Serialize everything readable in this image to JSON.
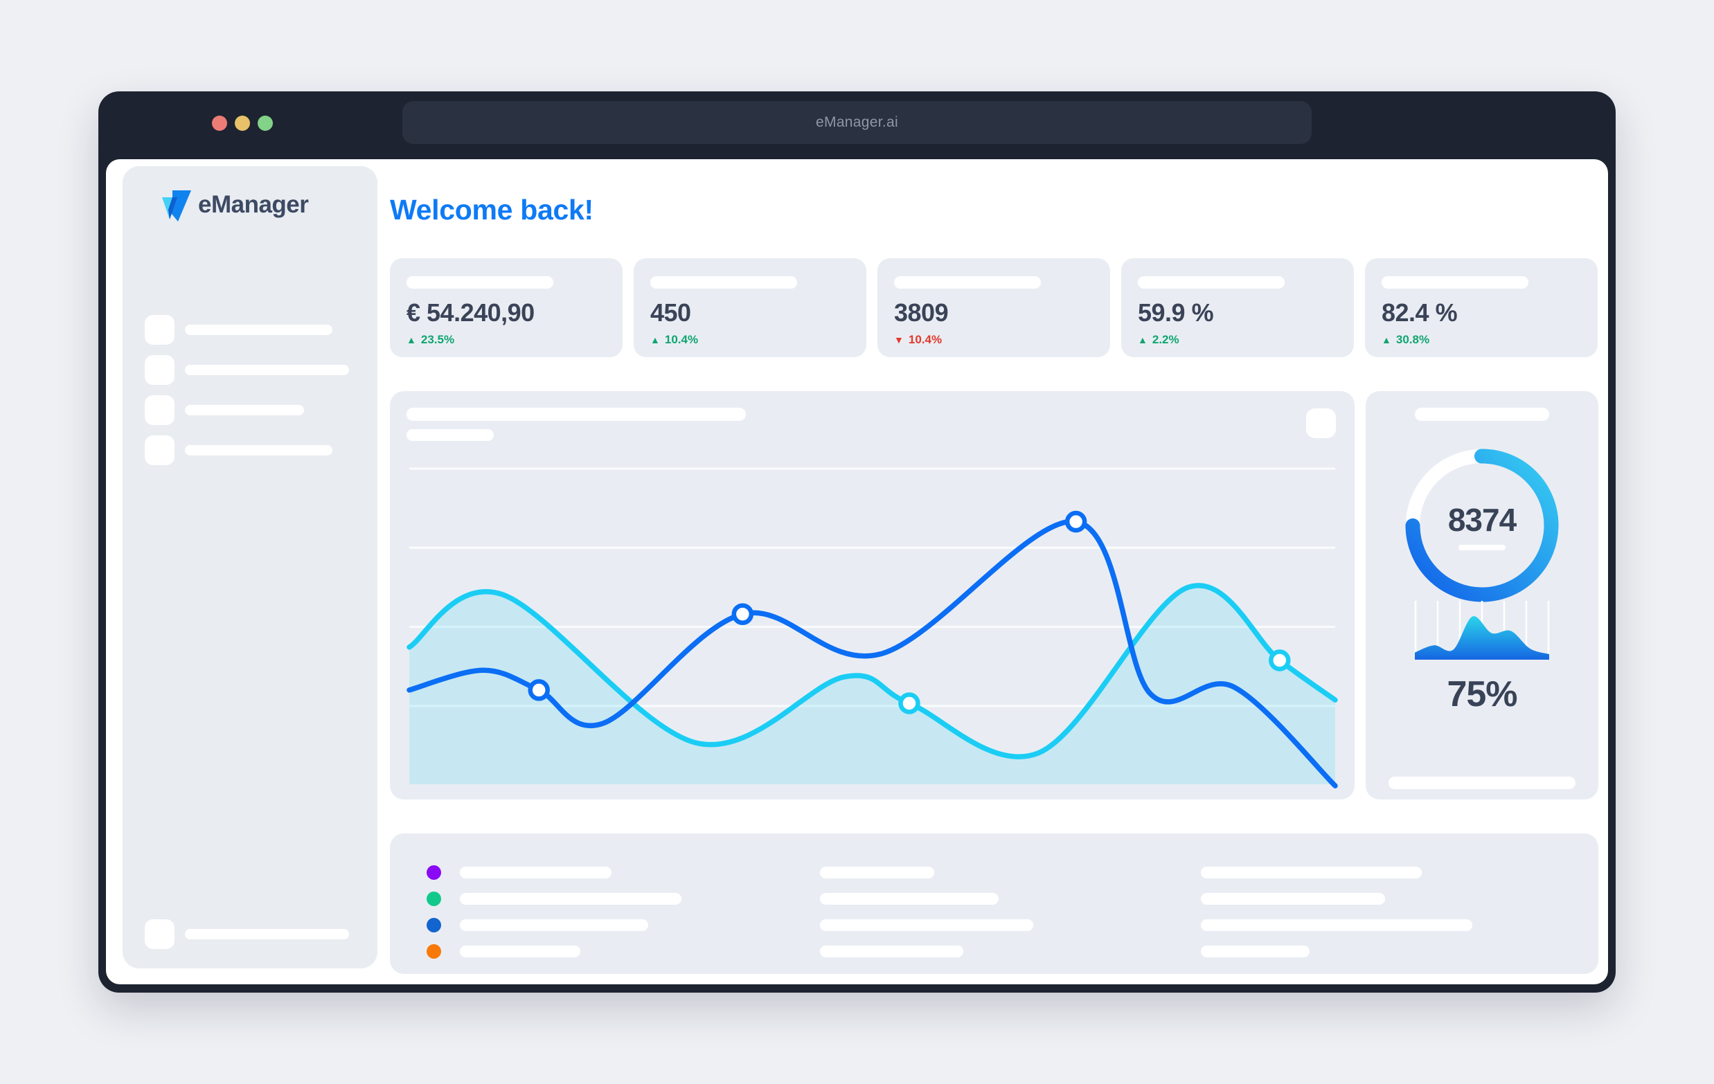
{
  "window": {
    "url": "eManager.ai",
    "traffic_lights": [
      "close",
      "minimize",
      "zoom"
    ]
  },
  "sidebar": {
    "brand": "eManager",
    "nav_placeholder_widths": [
      213,
      237,
      172,
      213
    ],
    "footer_placeholder_width": 237
  },
  "main": {
    "welcome": "Welcome back!"
  },
  "stats": [
    {
      "value": "€ 54.240,90",
      "arrow": "▲",
      "change": "23.5%",
      "trend": "up"
    },
    {
      "value": "450",
      "arrow": "▲",
      "change": "10.4%",
      "trend": "up"
    },
    {
      "value": "3809",
      "arrow": "▼",
      "change": "10.4%",
      "trend": "down"
    },
    {
      "value": "59.9 %",
      "arrow": "▲",
      "change": "2.2%",
      "trend": "up"
    },
    {
      "value": "82.4 %",
      "arrow": "▲",
      "change": "30.8%",
      "trend": "up"
    }
  ],
  "right_panel": {
    "donut_value": "8374",
    "gauge_percent": "75%"
  },
  "chart_data": [
    {
      "type": "line",
      "title": "",
      "xlabel": "",
      "ylabel": "",
      "ylim": [
        0,
        100
      ],
      "grid": {
        "horizontal_lines": 4,
        "color": "#ffffff"
      },
      "legend_position": "none",
      "series": [
        {
          "name": "secondary-cyan",
          "color": "#1bcdf4",
          "style": "line-with-area",
          "x_pct": [
            0,
            10,
            31,
            47,
            54,
            68,
            84,
            94,
            100
          ],
          "values": [
            43,
            59,
            14,
            34,
            26,
            11,
            61,
            39,
            27
          ],
          "marker_indexes": [
            4,
            7
          ]
        },
        {
          "name": "primary-blue",
          "color": "#0b6ef4",
          "style": "line",
          "x_pct": [
            0,
            8,
            14,
            21,
            36,
            51,
            72,
            80,
            89,
            100
          ],
          "values": [
            30,
            36,
            30,
            20,
            53,
            41,
            81,
            29,
            31,
            1
          ],
          "marker_indexes": [
            2,
            4,
            6
          ]
        }
      ]
    },
    {
      "type": "donut",
      "percent": 75,
      "center_label": "8374",
      "track_color": "#ffffff",
      "gradient": [
        "#38cff2",
        "#1160e8"
      ]
    },
    {
      "type": "area",
      "values": [
        13,
        26,
        18,
        78,
        48,
        52,
        20,
        10
      ],
      "label": "75%",
      "vertical_gridlines": 7,
      "gradient": [
        "#2bd4ea",
        "#1566e2"
      ]
    }
  ],
  "legend": {
    "rows": [
      {
        "dot_color": "#8a0af5",
        "bar_widths": [
          219,
          165,
          319
        ]
      },
      {
        "dot_color": "#12c98b",
        "bar_widths": [
          320,
          258,
          266
        ]
      },
      {
        "dot_color": "#1264cf",
        "bar_widths": [
          272,
          308,
          392
        ]
      },
      {
        "dot_color": "#f8790a",
        "bar_widths": [
          174,
          207,
          157
        ]
      }
    ]
  },
  "colors": {
    "accent_blue": "#0e7af5",
    "line_primary": "#0b6ef4",
    "line_secondary": "#1bcdf4",
    "area_fill": "rgba(27,205,244,0.16)",
    "positive": "#0fa56f",
    "negative": "#e2382b",
    "value_text": "#3a4357",
    "frame_dark": "#1d2330"
  }
}
